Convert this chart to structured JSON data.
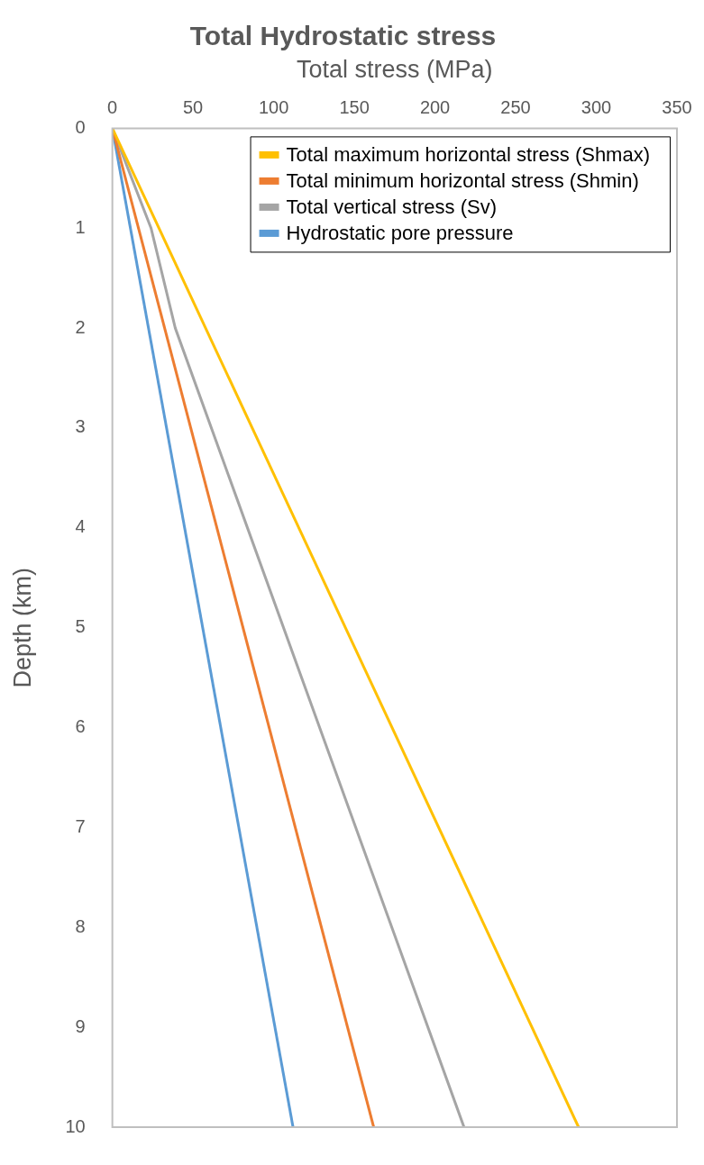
{
  "chart_data": {
    "type": "line",
    "title": "Total Hydrostatic stress",
    "xlabel": "Total stress (MPa)",
    "ylabel": "Depth (km)",
    "xlim": [
      0,
      350
    ],
    "xticks": [
      0,
      50,
      100,
      150,
      200,
      250,
      300,
      350
    ],
    "ylim": [
      10,
      0
    ],
    "yticks": [
      0,
      1,
      2,
      3,
      4,
      5,
      6,
      7,
      8,
      9,
      10
    ],
    "grid": false,
    "legend": "top right",
    "marker": "none",
    "line_style": "solid",
    "series": [
      {
        "name": "Total maximum horizontal stress (Shmax)",
        "color": "#ffc000",
        "x": [
          0,
          289
        ],
        "values": [
          0,
          10
        ]
      },
      {
        "name": "Total minimum horizontal stress (Shmin)",
        "color": "#ed7d31",
        "x": [
          0,
          162
        ],
        "values": [
          0,
          10
        ]
      },
      {
        "name": "Total vertical stress (Sv)",
        "color": "#a5a5a5",
        "x": [
          0,
          24,
          39,
          218
        ],
        "values": [
          0,
          1,
          2,
          10
        ]
      },
      {
        "name": "Hydrostatic pore pressure",
        "color": "#5b9bd5",
        "x": [
          0,
          112
        ],
        "values": [
          0,
          10
        ]
      }
    ]
  }
}
